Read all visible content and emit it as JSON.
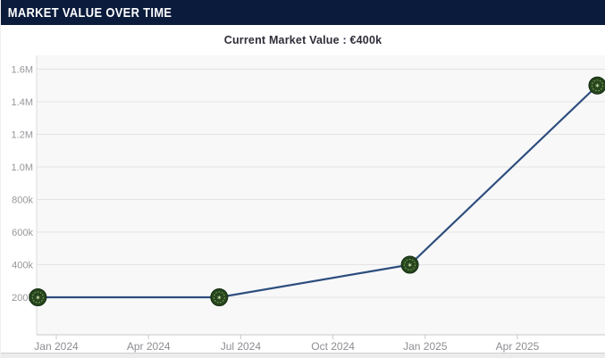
{
  "header": {
    "title": "MARKET VALUE OVER TIME"
  },
  "subtitle": "Current Market Value : €400k",
  "chart_data": {
    "type": "line",
    "title": "MARKET VALUE OVER TIME",
    "annotation": "Current Market Value : €400k",
    "currency": "EUR",
    "x_axis": {
      "ticks": [
        {
          "label": "Jan 2024",
          "month": 0
        },
        {
          "label": "Apr 2024",
          "month": 3
        },
        {
          "label": "Jul 2024",
          "month": 6
        },
        {
          "label": "Oct 2024",
          "month": 9
        },
        {
          "label": "Jan 2025",
          "month": 12
        },
        {
          "label": "Apr 2025",
          "month": 15
        }
      ]
    },
    "y_axis": {
      "ticks": [
        {
          "label": "200k",
          "value": 200000
        },
        {
          "label": "400k",
          "value": 400000
        },
        {
          "label": "600k",
          "value": 600000
        },
        {
          "label": "800k",
          "value": 800000
        },
        {
          "label": "1.0M",
          "value": 1000000
        },
        {
          "label": "1.2M",
          "value": 1200000
        },
        {
          "label": "1.4M",
          "value": 1400000
        },
        {
          "label": "1.6M",
          "value": 1600000
        }
      ]
    },
    "series": [
      {
        "name": "Market value",
        "color": "#2d4d7d",
        "points": [
          {
            "date": "Dec 2023",
            "month": -0.6,
            "value": 200000,
            "value_label": "200k"
          },
          {
            "date": "Jun 2024",
            "month": 5.3,
            "value": 200000,
            "value_label": "200k"
          },
          {
            "date": "Dec 2024",
            "month": 11.5,
            "value": 400000,
            "value_label": "400k"
          },
          {
            "date": "Jun 2025",
            "month": 17.6,
            "value": 1500000,
            "value_label": "1.5M"
          }
        ]
      }
    ],
    "marker": {
      "style": "coin-icon",
      "glyph": "✶",
      "fill": "#25451e",
      "edge": "#142c10",
      "ring": "#7f9b55",
      "glyph_color": "#cfe0a8"
    },
    "grid": true,
    "legend": false,
    "plot_bg": "#f8f8f9",
    "grid_color": "#e3e3e3",
    "axis_color": "#c9c9c9",
    "tick_label_color": "#8e8e93",
    "y_label_color": "#97979c"
  },
  "colors": {
    "header_bg": "#0a1b3c",
    "header_text": "#ffffff",
    "subtitle_text": "#2e2e3a",
    "line": "#2d4d7d"
  }
}
